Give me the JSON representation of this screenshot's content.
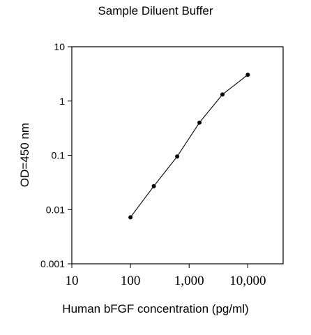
{
  "chart_data": {
    "type": "line",
    "title": "Sample Diluent Buffer",
    "xlabel": "Human bFGF concentration (pg/ml)",
    "ylabel": "OD=450 nm",
    "x_scale": "log",
    "y_scale": "log",
    "xlim": [
      10,
      40000
    ],
    "ylim": [
      0.001,
      10
    ],
    "x_ticks": [
      {
        "value": 10,
        "label": "10"
      },
      {
        "value": 100,
        "label": "100"
      },
      {
        "value": 1000,
        "label": "1,000"
      },
      {
        "value": 10000,
        "label": "10,000"
      }
    ],
    "y_ticks": [
      {
        "value": 0.001,
        "label": "0.001"
      },
      {
        "value": 0.01,
        "label": "0.01"
      },
      {
        "value": 0.1,
        "label": "0.1"
      },
      {
        "value": 1,
        "label": "1"
      },
      {
        "value": 10,
        "label": "10"
      }
    ],
    "grid": false,
    "series": [
      {
        "x": [
          100,
          250,
          625,
          1500,
          3700,
          10000
        ],
        "y": [
          0.0072,
          0.027,
          0.095,
          0.4,
          1.32,
          3.05
        ]
      }
    ]
  }
}
